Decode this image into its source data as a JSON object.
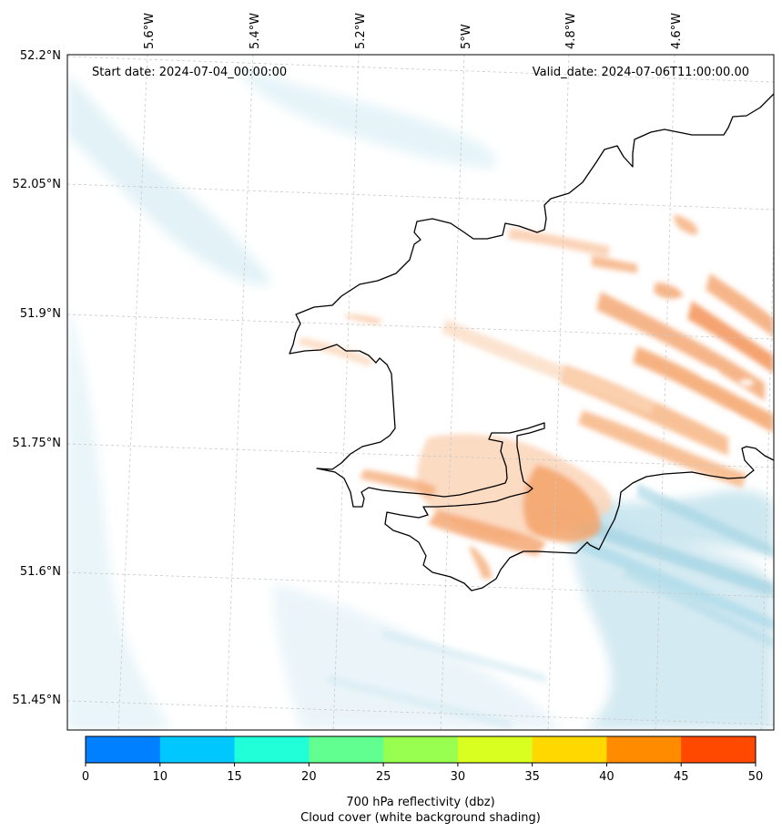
{
  "map": {
    "start_date": "Start date: 2024-07-04_00:00:00",
    "valid_date": "Valid_date: 2024-07-06T11:00:00.00",
    "lon_labels": [
      "5.6°W",
      "5.4°W",
      "5.2°W",
      "5°W",
      "4.8°W",
      "4.6°W"
    ],
    "lat_labels": [
      "52.2°N",
      "52.05°N",
      "51.9°N",
      "51.75°N",
      "51.6°N",
      "51.45°N"
    ]
  },
  "colorbar": {
    "ticks": [
      "0",
      "10",
      "15",
      "20",
      "25",
      "30",
      "35",
      "40",
      "45",
      "50"
    ],
    "colors": [
      "#0080ff",
      "#00c8ff",
      "#20ffd8",
      "#60ff90",
      "#98ff50",
      "#d8ff20",
      "#ffd800",
      "#ff8c00",
      "#ff4800"
    ],
    "title_line1": "700 hPa reflectivity (dbz)",
    "title_line2": "Cloud cover (white background shading)"
  },
  "legend_colors": {
    "coastline": "#000000",
    "reflectivity_weak": "#f4a36a",
    "cloud_shading": "#a8d8e8"
  }
}
